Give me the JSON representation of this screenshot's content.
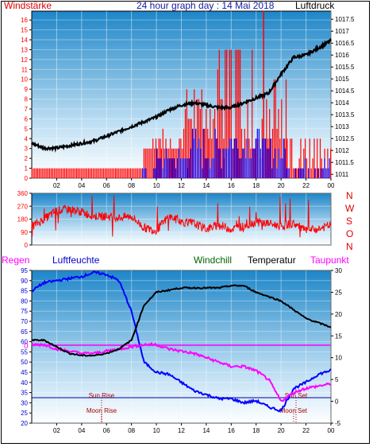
{
  "header": {
    "left_label": "Windstärke",
    "title": "24 hour graph day : 14 Mai 2018",
    "right_label": "Luftdruck"
  },
  "legend": {
    "rain": "Regen",
    "humidity": "Luftfeuchte",
    "windchill": "Windchill",
    "temperature": "Temperatur",
    "dewpoint": "Taupunkt"
  },
  "compass": [
    "N",
    "W",
    "S",
    "O",
    "N"
  ],
  "annotations": {
    "sun_rise": "Sun Rise",
    "sun_set": "Sun Set",
    "moon_rise": "Moon Rise",
    "moon_set": "Moon Set"
  },
  "colors": {
    "wind_speed": "#ff0000",
    "wind_avg": "#0000ff",
    "pressure": "#000000",
    "direction": "#ff0000",
    "humidity": "#0000ff",
    "temperature": "#000000",
    "dewpoint": "#ff00ff",
    "rain": "#ff00ff",
    "windchill": "#008000",
    "sky_top": "#1e86c8",
    "sky_bottom": "#ffffff"
  },
  "chart_data": [
    {
      "type": "line",
      "name": "wind-pressure",
      "x_ticks": [
        "02",
        "04",
        "06",
        "08",
        "10",
        "12",
        "14",
        "16",
        "18",
        "20",
        "22",
        "00"
      ],
      "x_range": [
        0,
        24
      ],
      "left_axis": {
        "label": "Windstärke",
        "ticks": [
          0,
          1,
          2,
          3,
          4,
          5,
          6,
          7,
          8,
          9,
          10,
          11,
          12,
          13,
          14,
          15,
          16
        ],
        "range": [
          0,
          16.9
        ]
      },
      "right_axis": {
        "label": "Luftdruck",
        "ticks": [
          "1011",
          "1011.5",
          "1012",
          "1012.5",
          "1013",
          "1013.5",
          "1014",
          "1014.5",
          "1015",
          "1015.5",
          "1016",
          "1016.5",
          "1017",
          "1017.5"
        ],
        "range": [
          1010.84,
          1017.84
        ]
      },
      "pressure": {
        "x": [
          0,
          1,
          2,
          3,
          4,
          5,
          6,
          7,
          8,
          9,
          10,
          11,
          12,
          13,
          14,
          15,
          16,
          17,
          18,
          19,
          20,
          21,
          22,
          23,
          24
        ],
        "y": [
          1012.3,
          1012.1,
          1012.1,
          1012.2,
          1012.3,
          1012.4,
          1012.6,
          1012.8,
          1013.0,
          1013.2,
          1013.4,
          1013.7,
          1013.9,
          1014.0,
          1013.9,
          1013.8,
          1013.8,
          1014.0,
          1014.2,
          1014.4,
          1015.2,
          1015.9,
          1016.0,
          1016.3,
          1016.6
        ]
      },
      "wind_gust_segments": [
        {
          "x": [
            0,
            9
          ],
          "y": [
            1,
            1
          ]
        },
        {
          "x": [
            9,
            10.4
          ],
          "y": [
            3,
            4
          ]
        },
        {
          "x": [
            10.4,
            12.2
          ],
          "y": [
            3,
            5
          ]
        },
        {
          "x": [
            12.2,
            14.2
          ],
          "y": [
            5,
            9
          ]
        },
        {
          "x": [
            14.2,
            16
          ],
          "y": [
            4,
            13
          ]
        },
        {
          "x": [
            16,
            18
          ],
          "y": [
            3,
            13
          ]
        },
        {
          "x": [
            18,
            20.5
          ],
          "y": [
            2,
            10
          ]
        },
        {
          "x": [
            20.5,
            24
          ],
          "y": [
            1,
            4
          ]
        }
      ],
      "wind_avg_segments": [
        {
          "x": [
            8.5,
            10
          ],
          "y": [
            0,
            1
          ]
        },
        {
          "x": [
            10,
            12.5
          ],
          "y": [
            1,
            3
          ]
        },
        {
          "x": [
            12.5,
            15.5
          ],
          "y": [
            1,
            5
          ]
        },
        {
          "x": [
            15.5,
            18.5
          ],
          "y": [
            2,
            5
          ]
        },
        {
          "x": [
            18.5,
            20.5
          ],
          "y": [
            1,
            4
          ]
        },
        {
          "x": [
            20.5,
            24
          ],
          "y": [
            0,
            2
          ]
        }
      ],
      "wind_peak": {
        "x": 18.6,
        "y": 16.9
      }
    },
    {
      "type": "line",
      "name": "wind-direction",
      "x_range": [
        0,
        24
      ],
      "y_axis": {
        "ticks": [
          "360",
          "270",
          "180",
          "90",
          "0"
        ],
        "range": [
          0,
          360
        ]
      },
      "series": {
        "x": [
          0,
          1,
          2,
          3,
          4,
          5,
          6,
          7,
          8,
          9,
          10,
          11,
          12,
          13,
          14,
          15,
          16,
          17,
          18,
          19,
          20,
          21,
          22,
          23,
          24
        ],
        "y": [
          130,
          180,
          240,
          250,
          230,
          200,
          200,
          190,
          200,
          120,
          100,
          200,
          160,
          150,
          110,
          140,
          110,
          130,
          160,
          150,
          130,
          150,
          100,
          110,
          140
        ]
      }
    },
    {
      "type": "line",
      "name": "temp-humidity",
      "x_ticks": [
        "02",
        "04",
        "06",
        "08",
        "10",
        "12",
        "14",
        "16",
        "18",
        "20",
        "22",
        "00"
      ],
      "x_range": [
        0,
        24
      ],
      "left_axis": {
        "ticks": [
          "95",
          "90",
          "85",
          "80",
          "75",
          "70",
          "65",
          "60",
          "55",
          "50",
          "45",
          "40",
          "35",
          "30",
          "25",
          "20"
        ],
        "range": [
          20,
          95
        ]
      },
      "right_axis": {
        "ticks": [
          "30",
          "25",
          "20",
          "15",
          "10",
          "5",
          "0",
          "-5"
        ],
        "range": [
          -5,
          30
        ]
      },
      "rain_label": "0",
      "humidity": {
        "x": [
          0,
          1,
          2,
          3,
          4,
          5,
          6,
          7,
          8,
          9,
          10,
          11,
          12,
          13,
          14,
          15,
          16,
          17,
          18,
          19,
          20,
          21,
          22,
          23,
          24
        ],
        "y": [
          85,
          89,
          90,
          91,
          92,
          94,
          93,
          90,
          75,
          50,
          45,
          44,
          40,
          36,
          34,
          32,
          32,
          30,
          31,
          28,
          26,
          37,
          40,
          44,
          46
        ]
      },
      "temperature": {
        "x": [
          0,
          1,
          2,
          3,
          4,
          5,
          6,
          7,
          8,
          9,
          10,
          11,
          12,
          13,
          14,
          15,
          16,
          17,
          18,
          19,
          20,
          21,
          22,
          23,
          24
        ],
        "y": [
          14,
          14,
          12.5,
          11,
          10.5,
          10.5,
          11,
          12,
          14,
          22,
          25,
          25.5,
          26,
          26,
          26,
          26,
          26.5,
          26.5,
          25,
          24,
          23,
          21,
          19,
          18,
          17
        ]
      },
      "dewpoint": {
        "x": [
          0,
          1,
          2,
          3,
          4,
          5,
          6,
          7,
          8,
          9,
          10,
          11,
          12,
          13,
          14,
          15,
          16,
          17,
          18,
          19,
          20,
          21,
          22,
          23,
          24
        ],
        "y": [
          13,
          13,
          12,
          11.5,
          11,
          11,
          11.5,
          12,
          12.5,
          13,
          13,
          12,
          11.5,
          11,
          10,
          9,
          8,
          8,
          7,
          5,
          0,
          2,
          3,
          3.5,
          4
        ]
      },
      "sun_rise_x": 5.6,
      "sun_set_x": 21.2,
      "moon_rise_x": 5.6,
      "moon_set_x": 21.0
    }
  ]
}
